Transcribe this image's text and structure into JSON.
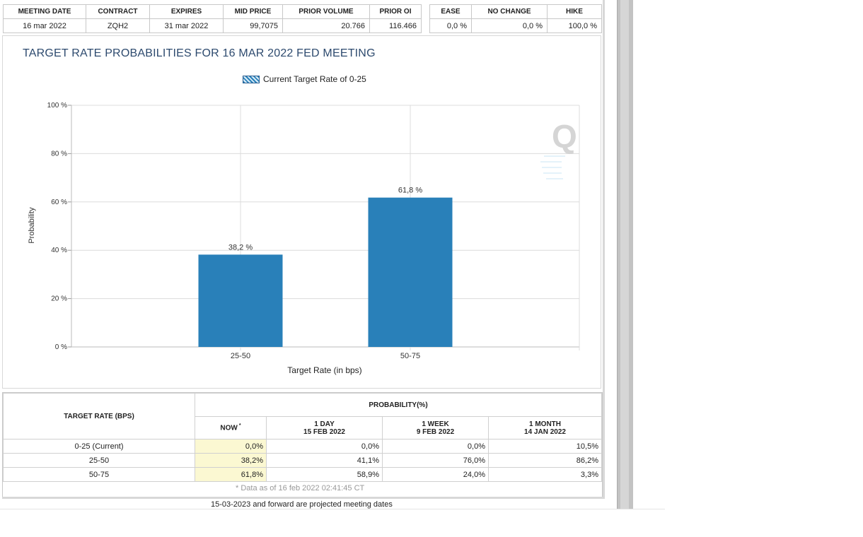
{
  "top_table": {
    "headers": [
      "MEETING DATE",
      "CONTRACT",
      "EXPIRES",
      "MID PRICE",
      "PRIOR VOLUME",
      "PRIOR OI"
    ],
    "row": [
      "16 mar 2022",
      "ZQH2",
      "31 mar 2022",
      "99,7075",
      "20.766",
      "116.466"
    ]
  },
  "outcome_table": {
    "headers": [
      "EASE",
      "NO CHANGE",
      "HIKE"
    ],
    "row": [
      "0,0 %",
      "0,0 %",
      "100,0 %"
    ]
  },
  "chart": {
    "title": "TARGET RATE PROBABILITIES FOR 16 MAR 2022 FED MEETING",
    "legend_label": "Current Target Rate of 0-25",
    "watermark": "Q"
  },
  "chart_data": {
    "type": "bar",
    "title": "TARGET RATE PROBABILITIES FOR 16 MAR 2022 FED MEETING",
    "xlabel": "Target Rate (in bps)",
    "ylabel": "Probability",
    "categories": [
      "25-50",
      "50-75"
    ],
    "values": [
      38.2,
      61.8
    ],
    "data_labels": [
      "38,2 %",
      "61,8 %"
    ],
    "yticks": [
      "0 %",
      "20 %",
      "40 %",
      "60 %",
      "80 %",
      "100 %"
    ],
    "ytick_values": [
      0,
      20,
      40,
      60,
      80,
      100
    ],
    "ylim": [
      0,
      100
    ],
    "grid": true,
    "legend_position": "top",
    "bar_color": "#2980b9"
  },
  "prob_table": {
    "target_header": "TARGET RATE (BPS)",
    "probability_header": "PROBABILITY(%)",
    "now_label": "NOW",
    "now_marker": "*",
    "columns": [
      {
        "line1": "1 DAY",
        "line2": "15 FEB 2022"
      },
      {
        "line1": "1 WEEK",
        "line2": "9 FEB 2022"
      },
      {
        "line1": "1 MONTH",
        "line2": "14 JAN 2022"
      }
    ],
    "rows": [
      {
        "rate": "0-25 (Current)",
        "now": "0,0%",
        "day": "0,0%",
        "week": "0,0%",
        "month": "10,5%"
      },
      {
        "rate": "25-50",
        "now": "38,2%",
        "day": "41,1%",
        "week": "76,0%",
        "month": "86,2%"
      },
      {
        "rate": "50-75",
        "now": "61,8%",
        "day": "58,9%",
        "week": "24,0%",
        "month": "3,3%"
      }
    ],
    "footnote": "* Data as of 16 feb 2022 02:41:45 CT"
  },
  "projected_note": "15-03-2023 and forward are projected meeting dates"
}
